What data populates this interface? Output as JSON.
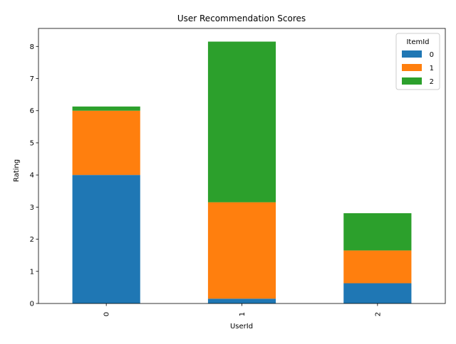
{
  "chart_data": {
    "type": "bar",
    "stacked": true,
    "title": "User Recommendation Scores",
    "xlabel": "UserId",
    "ylabel": "Rating",
    "categories": [
      "0",
      "1",
      "2"
    ],
    "series": [
      {
        "name": "0",
        "values": [
          4.0,
          0.15,
          0.63
        ],
        "color": "#1f77b4"
      },
      {
        "name": "1",
        "values": [
          2.0,
          3.0,
          1.02
        ],
        "color": "#ff7f0e"
      },
      {
        "name": "2",
        "values": [
          0.13,
          5.0,
          1.16
        ],
        "color": "#2ca02c"
      }
    ],
    "ylim": [
      0,
      8.56
    ],
    "yticks": [
      "0",
      "1",
      "2",
      "3",
      "4",
      "5",
      "6",
      "7",
      "8"
    ],
    "legend": {
      "title": "ItemId",
      "placement": "top-right"
    },
    "grid": false
  }
}
